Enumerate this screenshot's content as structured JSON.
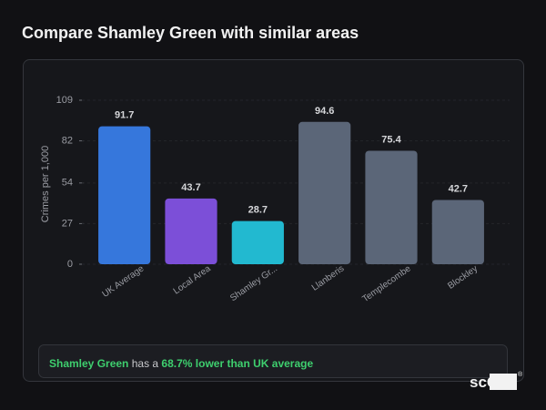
{
  "header": {
    "title": "Compare Shamley Green with similar areas"
  },
  "chart_data": {
    "type": "bar",
    "y_label": "Crimes per 1,000",
    "categories": [
      "UK Average",
      "Local Area",
      "Shamley Gr...",
      "Llanberis",
      "Templecombe",
      "Blockley"
    ],
    "values": [
      91.7,
      43.7,
      28.7,
      94.6,
      75.4,
      42.7
    ],
    "colors": [
      "#3677dc",
      "#7c4fd8",
      "#22b9d0",
      "#5b6678",
      "#5b6678",
      "#5b6678"
    ],
    "ylim": [
      0,
      109
    ],
    "yticks": [
      0,
      27,
      54,
      82,
      109
    ],
    "grid": true
  },
  "summary": {
    "area": "Shamley Green",
    "text": "has a",
    "highlight": "68.7% lower than UK average"
  },
  "logo": {
    "text": "scOS",
    "mark": "®"
  }
}
